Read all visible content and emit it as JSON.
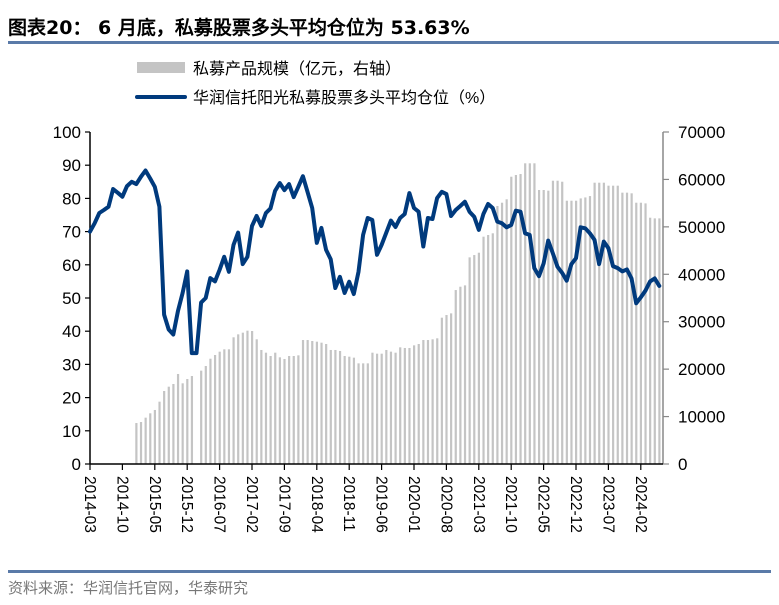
{
  "title": "图表20：  6 月底，私募股票多头平均仓位为 53.63%",
  "footer": "资料来源：华润信托官网，华泰研究",
  "colors": {
    "line": "#003a7d",
    "bars": "#c4c4c4",
    "rule": "#5a7aa8"
  },
  "chart_data": {
    "type": "bar+line",
    "legend_position": "top",
    "grid": false,
    "x_start": "2014-03",
    "x_end": "2024-06",
    "x_frequency": "monthly",
    "xtick_labels": [
      "2014-03",
      "2014-10",
      "2015-05",
      "2015-12",
      "2016-07",
      "2017-02",
      "2017-09",
      "2018-04",
      "2018-11",
      "2019-06",
      "2020-01",
      "2020-08",
      "2021-03",
      "2021-10",
      "2022-05",
      "2022-12",
      "2023-07",
      "2024-02"
    ],
    "left_axis": {
      "ylim": [
        0,
        100
      ],
      "ticks": [
        "0",
        "10",
        "20",
        "30",
        "40",
        "50",
        "60",
        "70",
        "80",
        "90",
        "100"
      ]
    },
    "right_axis": {
      "ylim": [
        0,
        70000
      ],
      "ticks": [
        "0",
        "10000",
        "20000",
        "30000",
        "40000",
        "50000",
        "60000",
        "70000"
      ]
    },
    "series": [
      {
        "name": "私募产品规模（亿元，右轴）",
        "type": "bar",
        "axis": "right",
        "values": [
          null,
          null,
          null,
          null,
          null,
          null,
          null,
          null,
          null,
          null,
          8640,
          8850,
          9770,
          10690,
          11390,
          13140,
          15390,
          16300,
          16870,
          18980,
          17010,
          17920,
          18550,
          null,
          19680,
          20660,
          22200,
          22980,
          23680,
          24180,
          24180,
          26710,
          27340,
          27690,
          28110,
          28040,
          26290,
          24040,
          23470,
          22770,
          23470,
          22490,
          22140,
          22770,
          22770,
          22910,
          26140,
          26140,
          25930,
          25790,
          25580,
          25300,
          24040,
          24040,
          23830,
          22770,
          22630,
          22420,
          21220,
          21220,
          21220,
          23470,
          23260,
          23260,
          24040,
          23690,
          23470,
          24600,
          24460,
          24460,
          25020,
          25300,
          26140,
          26140,
          26290,
          26500,
          30850,
          31410,
          31760,
          36680,
          37380,
          37660,
          43570,
          44060,
          44550,
          47930,
          48280,
          48640,
          54400,
          55090,
          55810,
          60570,
          60930,
          61140,
          63400,
          63400,
          63400,
          57770,
          57770,
          57630,
          59730,
          59730,
          59520,
          55510,
          55510,
          55510,
          56000,
          56200,
          56490,
          59310,
          59310,
          59310,
          58680,
          58680,
          58680,
          57210,
          57210,
          57070,
          55090,
          55090,
          54950,
          51930,
          51790,
          51790
        ]
      },
      {
        "name": "华润信托阳光私募股票多头平均仓位（%）",
        "type": "line",
        "axis": "left",
        "values": [
          70.0,
          72.5,
          75.6,
          76.5,
          77.5,
          82.8,
          81.7,
          80.5,
          83.7,
          85.0,
          84.3,
          86.5,
          88.4,
          86.0,
          83.5,
          77.5,
          45.0,
          40.5,
          39.0,
          46.0,
          51.5,
          58.0,
          33.4,
          33.4,
          48.6,
          50.0,
          56.0,
          55.0,
          58.5,
          62.4,
          57.9,
          66.0,
          69.7,
          60.2,
          62.4,
          71.7,
          74.7,
          71.7,
          75.6,
          77.0,
          82.3,
          84.6,
          82.5,
          84.3,
          80.4,
          83.5,
          86.7,
          82.0,
          77.1,
          66.6,
          71.1,
          64.5,
          61.7,
          53.0,
          56.4,
          51.5,
          54.9,
          51.2,
          57.9,
          69.0,
          74.1,
          73.5,
          63.0,
          66.0,
          69.6,
          73.3,
          71.4,
          74.1,
          75.3,
          81.6,
          77.1,
          76.0,
          65.5,
          74.1,
          73.8,
          80.1,
          82.0,
          81.3,
          74.7,
          76.5,
          77.7,
          79.0,
          76.0,
          74.5,
          70.5,
          75.3,
          78.3,
          77.1,
          73.0,
          72.5,
          71.3,
          72.0,
          76.3,
          76.0,
          69.5,
          69.0,
          59.0,
          56.6,
          60.4,
          67.3,
          63.4,
          59.4,
          57.6,
          55.2,
          60.2,
          62.0,
          71.3,
          71.0,
          69.5,
          67.5,
          60.2,
          67.0,
          65.0,
          59.6,
          59.0,
          58.0,
          58.6,
          55.9,
          48.4,
          50.2,
          52.2,
          55.0,
          55.9,
          53.63
        ]
      }
    ]
  }
}
